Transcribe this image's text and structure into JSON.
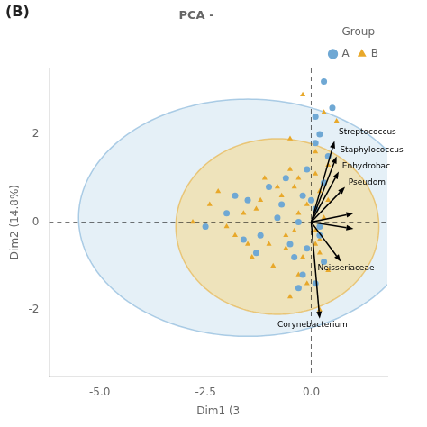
{
  "chart_data": {
    "type": "scatter",
    "title": "PCA -",
    "panel_label": "(B)",
    "x_label": "Dim1 (3",
    "y_label": "Dim2 (14.8%)",
    "xlim": [
      -6.2,
      1.8
    ],
    "ylim": [
      -3.5,
      3.5
    ],
    "xticks": [
      {
        "value": -5.0,
        "label": "-5.0"
      },
      {
        "value": -2.5,
        "label": "-2.5"
      },
      {
        "value": 0.0,
        "label": "0.0"
      }
    ],
    "yticks": [
      -2,
      0,
      2
    ],
    "grid": false,
    "legend": "upper right",
    "legend_title": "Group",
    "series": [
      {
        "name": "A",
        "color": "#6fa8d4",
        "marker": "circle",
        "x": [
          0.3,
          0.5,
          0.1,
          0.2,
          0.4,
          -0.1,
          0.3,
          -0.2,
          0.1,
          -0.3,
          0.2,
          -0.1,
          0.3,
          -0.2,
          0.1,
          -1.0,
          -1.5,
          -2.0,
          -2.5,
          -1.2,
          -0.8,
          -0.5,
          -1.8,
          -0.6,
          0.0,
          -0.4,
          -1.3,
          0.2,
          -0.7,
          -1.6,
          0.1,
          -0.3
        ],
        "values": [
          3.2,
          2.6,
          2.4,
          2.0,
          1.5,
          1.2,
          0.9,
          0.6,
          0.3,
          0.0,
          -0.3,
          -0.6,
          -0.9,
          -1.2,
          -1.4,
          0.8,
          0.5,
          0.2,
          -0.1,
          -0.3,
          0.1,
          -0.5,
          0.6,
          1.0,
          0.5,
          -0.8,
          -0.7,
          -0.1,
          0.4,
          -0.4,
          1.8,
          -1.5
        ]
      },
      {
        "name": "B",
        "color": "#e8a82a",
        "marker": "triangle",
        "x": [
          -0.2,
          0.3,
          0.6,
          -0.5,
          0.1,
          0.4,
          -0.3,
          0.2,
          -0.1,
          0.3,
          -0.4,
          0.1,
          -0.2,
          0.4,
          -0.1,
          -0.5,
          0.2,
          -0.8,
          -1.2,
          -1.6,
          -2.0,
          -2.4,
          -2.8,
          -1.0,
          -0.6,
          -1.4,
          -0.3,
          0.1,
          -0.7,
          -1.8,
          0.3,
          -0.5,
          -1.1,
          0.2,
          -0.9,
          0.4,
          -0.3,
          -1.3,
          0.1,
          -0.6,
          -2.2,
          0.2,
          -0.4,
          -1.5
        ],
        "values": [
          2.9,
          2.5,
          2.3,
          1.9,
          1.6,
          1.3,
          1.0,
          0.7,
          0.4,
          0.1,
          -0.2,
          -0.5,
          -0.8,
          -1.1,
          -1.4,
          -1.7,
          -2.0,
          0.8,
          0.5,
          0.2,
          -0.1,
          0.4,
          0.0,
          -0.5,
          -0.3,
          -0.8,
          0.2,
          -0.2,
          0.6,
          -0.3,
          0.9,
          1.2,
          1.0,
          -0.7,
          -1.0,
          0.5,
          -1.2,
          0.3,
          1.1,
          -0.6,
          0.7,
          -0.4,
          0.8,
          -0.5
        ]
      }
    ],
    "ellipses": [
      {
        "cx": -1.5,
        "cy": 0.1,
        "rx": 4.0,
        "ry": 2.7,
        "angle": 0,
        "color": "#6fa8d4",
        "fill_color": "#d0e4f0"
      },
      {
        "cx": -0.8,
        "cy": -0.1,
        "rx": 2.4,
        "ry": 2.0,
        "angle": 0,
        "color": "#e8a82a",
        "fill_color": "#f5d88a"
      }
    ],
    "hlines": [
      0
    ],
    "vlines": [
      0
    ],
    "arrows": {
      "color": "black",
      "origin": [
        0.0,
        0.0
      ],
      "items": [
        {
          "end": [
            0.55,
            1.85
          ],
          "label": "Streptococcus",
          "label_at": [
            0.65,
            2.05
          ]
        },
        {
          "end": [
            0.6,
            1.5
          ],
          "label": "Staphylococcus",
          "label_at": [
            0.68,
            1.65
          ]
        },
        {
          "end": [
            0.65,
            1.15
          ],
          "label": "Enhydrobac",
          "label_at": [
            0.73,
            1.28
          ]
        },
        {
          "end": [
            0.8,
            0.8
          ],
          "label": "Pseudom",
          "label_at": [
            0.88,
            0.9
          ]
        },
        {
          "end": [
            1.0,
            0.2
          ]
        },
        {
          "end": [
            1.0,
            -0.15
          ]
        },
        {
          "end": [
            0.7,
            -0.9
          ],
          "label": "Neisseriaceae",
          "label_at": [
            0.15,
            -1.05
          ]
        },
        {
          "end": [
            0.2,
            -2.2
          ],
          "label": "Corynebacterium",
          "label_at": [
            -0.8,
            -2.35
          ]
        }
      ]
    }
  }
}
